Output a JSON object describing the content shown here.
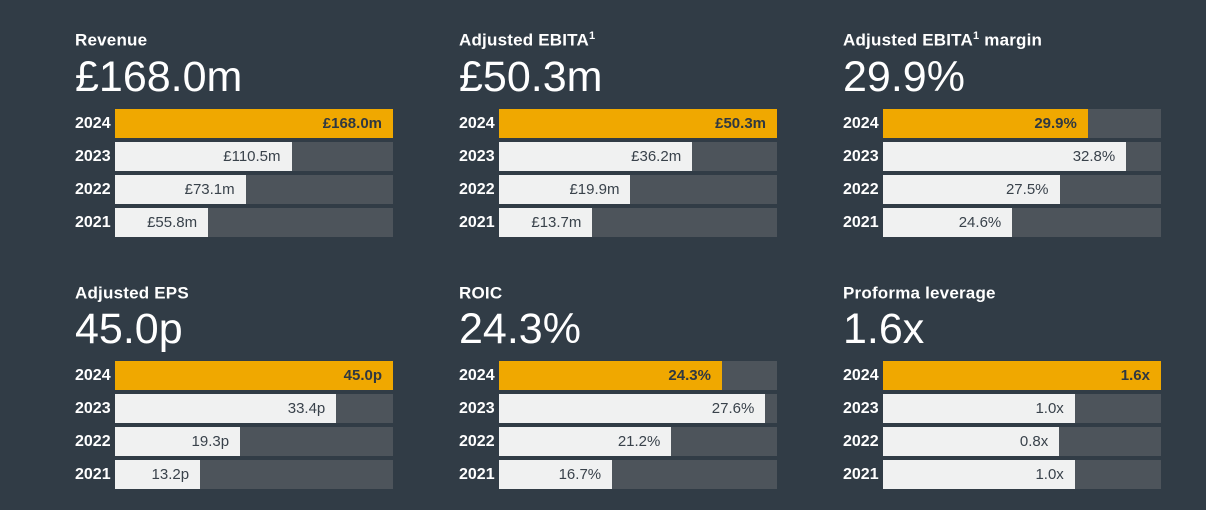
{
  "page": {
    "background_color": "#313C46",
    "accent_color": "#F0A800",
    "track_color": "#4D545B",
    "bar_light_color": "#F0F1F1",
    "text_light_color": "#FFFFFF",
    "text_dark_color": "#39424B"
  },
  "panels": [
    {
      "title": "Revenue",
      "title_sup": "",
      "title_post": "",
      "headline": "£168.0m",
      "bars": [
        {
          "year": "2024",
          "label": "£168.0m",
          "width_pct": 100
        },
        {
          "year": "2023",
          "label": "£110.5m",
          "width_pct": 63.5
        },
        {
          "year": "2022",
          "label": "£73.1m",
          "width_pct": 47
        },
        {
          "year": "2021",
          "label": "£55.8m",
          "width_pct": 33.5
        }
      ]
    },
    {
      "title": "Adjusted EBITA",
      "title_sup": "1",
      "title_post": "",
      "headline": "£50.3m",
      "bars": [
        {
          "year": "2024",
          "label": "£50.3m",
          "width_pct": 100
        },
        {
          "year": "2023",
          "label": "£36.2m",
          "width_pct": 69.5
        },
        {
          "year": "2022",
          "label": "£19.9m",
          "width_pct": 47.3
        },
        {
          "year": "2021",
          "label": "£13.7m",
          "width_pct": 33.6
        }
      ]
    },
    {
      "title": "Adjusted EBITA",
      "title_sup": "1",
      "title_post": " margin",
      "headline": "29.9%",
      "bars": [
        {
          "year": "2024",
          "label": "29.9%",
          "width_pct": 73.7
        },
        {
          "year": "2023",
          "label": "32.8%",
          "width_pct": 87.5
        },
        {
          "year": "2022",
          "label": "27.5%",
          "width_pct": 63.5
        },
        {
          "year": "2021",
          "label": "24.6%",
          "width_pct": 46.5
        }
      ]
    },
    {
      "title": "Adjusted EPS",
      "title_sup": "",
      "title_post": "",
      "headline": "45.0p",
      "bars": [
        {
          "year": "2024",
          "label": "45.0p",
          "width_pct": 100
        },
        {
          "year": "2023",
          "label": "33.4p",
          "width_pct": 79.6
        },
        {
          "year": "2022",
          "label": "19.3p",
          "width_pct": 45
        },
        {
          "year": "2021",
          "label": "13.2p",
          "width_pct": 30.6
        }
      ]
    },
    {
      "title": "ROIC",
      "title_sup": "",
      "title_post": "",
      "headline": "24.3%",
      "bars": [
        {
          "year": "2024",
          "label": "24.3%",
          "width_pct": 80.2
        },
        {
          "year": "2023",
          "label": "27.6%",
          "width_pct": 95.8
        },
        {
          "year": "2022",
          "label": "21.2%",
          "width_pct": 62
        },
        {
          "year": "2021",
          "label": "16.7%",
          "width_pct": 40.7
        }
      ]
    },
    {
      "title": "Proforma leverage",
      "title_sup": "",
      "title_post": "",
      "headline": "1.6x",
      "bars": [
        {
          "year": "2024",
          "label": "1.6x",
          "width_pct": 100
        },
        {
          "year": "2023",
          "label": "1.0x",
          "width_pct": 69
        },
        {
          "year": "2022",
          "label": "0.8x",
          "width_pct": 63.4
        },
        {
          "year": "2021",
          "label": "1.0x",
          "width_pct": 69
        }
      ]
    }
  ],
  "chart_data": [
    {
      "type": "bar",
      "orientation": "horizontal",
      "title": "Revenue",
      "headline": "£168.0m",
      "unit": "£m",
      "categories": [
        "2024",
        "2023",
        "2022",
        "2021"
      ],
      "values": [
        168.0,
        110.5,
        73.1,
        55.8
      ],
      "data_labels": [
        "£168.0m",
        "£110.5m",
        "£73.1m",
        "£55.8m"
      ],
      "highlight_category": "2024",
      "grid": false,
      "legend": false
    },
    {
      "type": "bar",
      "orientation": "horizontal",
      "title": "Adjusted EBITA1",
      "headline": "£50.3m",
      "unit": "£m",
      "categories": [
        "2024",
        "2023",
        "2022",
        "2021"
      ],
      "values": [
        50.3,
        36.2,
        19.9,
        13.7
      ],
      "data_labels": [
        "£50.3m",
        "£36.2m",
        "£19.9m",
        "£13.7m"
      ],
      "highlight_category": "2024",
      "grid": false,
      "legend": false
    },
    {
      "type": "bar",
      "orientation": "horizontal",
      "title": "Adjusted EBITA1 margin",
      "headline": "29.9%",
      "unit": "%",
      "categories": [
        "2024",
        "2023",
        "2022",
        "2021"
      ],
      "values": [
        29.9,
        32.8,
        27.5,
        24.6
      ],
      "data_labels": [
        "29.9%",
        "32.8%",
        "27.5%",
        "24.6%"
      ],
      "highlight_category": "2024",
      "grid": false,
      "legend": false
    },
    {
      "type": "bar",
      "orientation": "horizontal",
      "title": "Adjusted EPS",
      "headline": "45.0p",
      "unit": "p",
      "categories": [
        "2024",
        "2023",
        "2022",
        "2021"
      ],
      "values": [
        45.0,
        33.4,
        19.3,
        13.2
      ],
      "data_labels": [
        "45.0p",
        "33.4p",
        "19.3p",
        "13.2p"
      ],
      "highlight_category": "2024",
      "grid": false,
      "legend": false
    },
    {
      "type": "bar",
      "orientation": "horizontal",
      "title": "ROIC",
      "headline": "24.3%",
      "unit": "%",
      "categories": [
        "2024",
        "2023",
        "2022",
        "2021"
      ],
      "values": [
        24.3,
        27.6,
        21.2,
        16.7
      ],
      "data_labels": [
        "24.3%",
        "27.6%",
        "21.2%",
        "16.7%"
      ],
      "highlight_category": "2024",
      "grid": false,
      "legend": false
    },
    {
      "type": "bar",
      "orientation": "horizontal",
      "title": "Proforma leverage",
      "headline": "1.6x",
      "unit": "x",
      "categories": [
        "2024",
        "2023",
        "2022",
        "2021"
      ],
      "values": [
        1.6,
        1.0,
        0.8,
        1.0
      ],
      "data_labels": [
        "1.6x",
        "1.0x",
        "0.8x",
        "1.0x"
      ],
      "highlight_category": "2024",
      "grid": false,
      "legend": false
    }
  ]
}
